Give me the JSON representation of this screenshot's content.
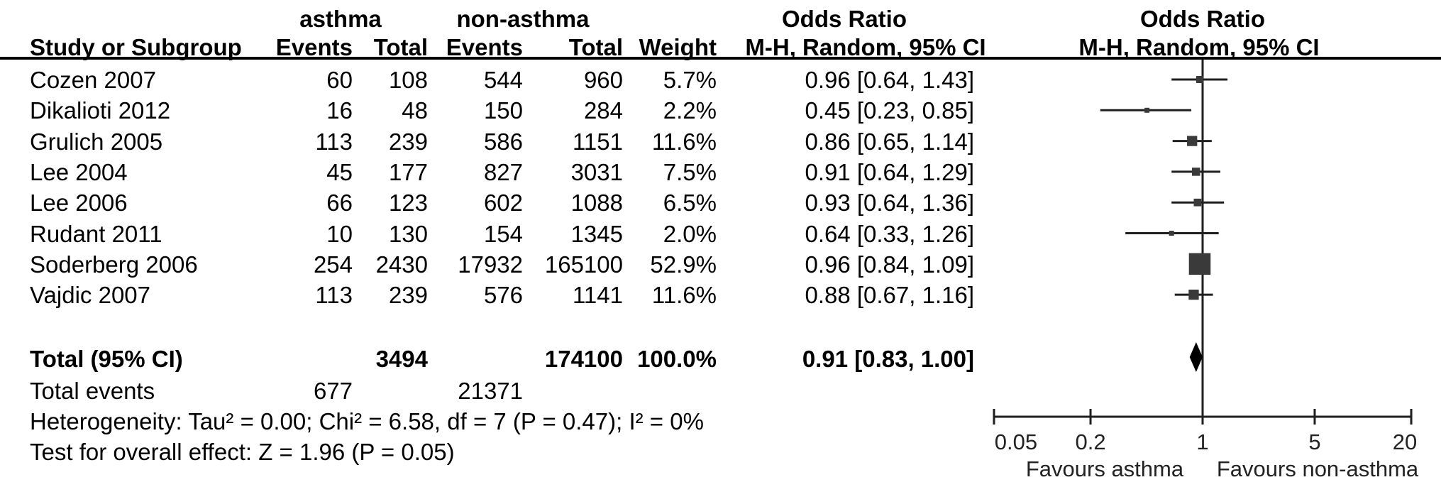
{
  "title_row": {
    "asthma": "asthma",
    "non_asthma": "non-asthma",
    "odds_ratio_text": "Odds Ratio",
    "odds_ratio_plot": "Odds Ratio"
  },
  "header_row": {
    "study": "Study or Subgroup",
    "events1": "Events",
    "total1": "Total",
    "events2": "Events",
    "total2": "Total",
    "weight": "Weight",
    "method1": "M-H, Random, 95% CI",
    "method2": "M-H, Random, 95% CI"
  },
  "studies": [
    {
      "name": "Cozen 2007",
      "e1": 60,
      "t1": 108,
      "e2": 544,
      "t2": 960,
      "weight": 5.7,
      "or": 0.96,
      "lo": 0.64,
      "hi": 1.43
    },
    {
      "name": "Dikalioti 2012",
      "e1": 16,
      "t1": 48,
      "e2": 150,
      "t2": 284,
      "weight": 2.2,
      "or": 0.45,
      "lo": 0.23,
      "hi": 0.85
    },
    {
      "name": "Grulich 2005",
      "e1": 113,
      "t1": 239,
      "e2": 586,
      "t2": 1151,
      "weight": 11.6,
      "or": 0.86,
      "lo": 0.65,
      "hi": 1.14
    },
    {
      "name": "Lee 2004",
      "e1": 45,
      "t1": 177,
      "e2": 827,
      "t2": 3031,
      "weight": 7.5,
      "or": 0.91,
      "lo": 0.64,
      "hi": 1.29
    },
    {
      "name": "Lee 2006",
      "e1": 66,
      "t1": 123,
      "e2": 602,
      "t2": 1088,
      "weight": 6.5,
      "or": 0.93,
      "lo": 0.64,
      "hi": 1.36
    },
    {
      "name": "Rudant 2011",
      "e1": 10,
      "t1": 130,
      "e2": 154,
      "t2": 1345,
      "weight": 2.0,
      "or": 0.64,
      "lo": 0.33,
      "hi": 1.26
    },
    {
      "name": "Soderberg 2006",
      "e1": 254,
      "t1": 2430,
      "e2": 17932,
      "t2": 165100,
      "weight": 52.9,
      "or": 0.96,
      "lo": 0.84,
      "hi": 1.09
    },
    {
      "name": "Vajdic 2007",
      "e1": 113,
      "t1": 239,
      "e2": 576,
      "t2": 1141,
      "weight": 11.6,
      "or": 0.88,
      "lo": 0.67,
      "hi": 1.16
    }
  ],
  "total_row": {
    "label": "Total (95% CI)",
    "t1": 3494,
    "t2": 174100,
    "weight": 100.0,
    "or": 0.91,
    "lo": 0.83,
    "hi": 1.0
  },
  "total_events_row": {
    "label": "Total events",
    "e1": 677,
    "e2": 21371
  },
  "footer": {
    "heterogeneity": "Heterogeneity: Tau² = 0.00; Chi² = 6.58, df = 7 (P = 0.47); I² = 0%",
    "overall": "Test for overall effect: Z = 1.96 (P = 0.05)"
  },
  "chart_data": {
    "type": "scatter",
    "subtype": "forest-plot",
    "x_scale": "log10",
    "x_range": [
      0.05,
      20
    ],
    "axis_ticks": [
      0.05,
      0.2,
      1,
      5,
      20
    ],
    "no_effect_line": 1,
    "favours_left": "Favours asthma",
    "favours_right": "Favours non-asthma",
    "points": [
      {
        "label": "Cozen 2007",
        "or": 0.96,
        "lo": 0.64,
        "hi": 1.43,
        "weight": 5.7
      },
      {
        "label": "Dikalioti 2012",
        "or": 0.45,
        "lo": 0.23,
        "hi": 0.85,
        "weight": 2.2
      },
      {
        "label": "Grulich 2005",
        "or": 0.86,
        "lo": 0.65,
        "hi": 1.14,
        "weight": 11.6
      },
      {
        "label": "Lee 2004",
        "or": 0.91,
        "lo": 0.64,
        "hi": 1.29,
        "weight": 7.5
      },
      {
        "label": "Lee 2006",
        "or": 0.93,
        "lo": 0.64,
        "hi": 1.36,
        "weight": 6.5
      },
      {
        "label": "Rudant 2011",
        "or": 0.64,
        "lo": 0.33,
        "hi": 1.26,
        "weight": 2.0
      },
      {
        "label": "Soderberg 2006",
        "or": 0.96,
        "lo": 0.84,
        "hi": 1.09,
        "weight": 52.9
      },
      {
        "label": "Vajdic 2007",
        "or": 0.88,
        "lo": 0.67,
        "hi": 1.16,
        "weight": 11.6
      }
    ],
    "summary": {
      "label": "Total (95% CI)",
      "or": 0.91,
      "lo": 0.83,
      "hi": 1.0
    },
    "colors": {
      "square": "#3a3a3a",
      "diamond": "#000000",
      "line": "#1f1f1f",
      "plot_text": "#222222"
    }
  }
}
